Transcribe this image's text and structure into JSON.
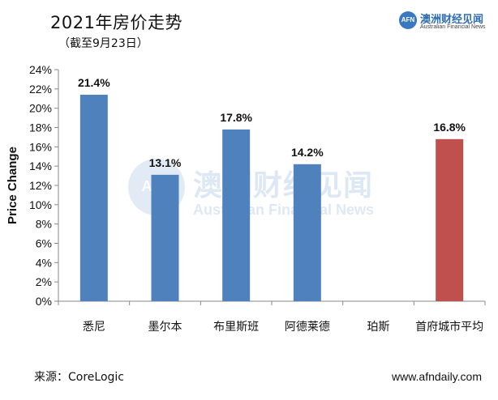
{
  "title": "2021年房价走势",
  "subtitle": "（截至9月23日）",
  "logo": {
    "mark": "AFN",
    "name_cn": "澳洲财经见闻",
    "name_en": "Australian Financial News"
  },
  "watermark": {
    "mark": "AFN",
    "name_cn": "澳洲财经见闻",
    "name_en": "Australian Financial News"
  },
  "source": "来源：CoreLogic",
  "website": "www.afndaily.com",
  "chart_data": {
    "type": "bar",
    "ylabel": "Price Change",
    "ylim": [
      0,
      24
    ],
    "yticks": [
      "0%",
      "2%",
      "4%",
      "6%",
      "8%",
      "10%",
      "12%",
      "14%",
      "16%",
      "18%",
      "20%",
      "22%",
      "24%"
    ],
    "categories": [
      "悉尼",
      "墨尔本",
      "布里斯班",
      "阿德莱德",
      "珀斯",
      "首府城市平均"
    ],
    "values": [
      21.4,
      13.1,
      17.8,
      14.2,
      null,
      16.8
    ],
    "value_labels": [
      "21.4%",
      "13.1%",
      "17.8%",
      "14.2%",
      "",
      "16.8%"
    ],
    "colors": [
      "#4f81bd",
      "#4f81bd",
      "#4f81bd",
      "#4f81bd",
      "#4f81bd",
      "#c0504d"
    ],
    "grid": false,
    "legend": "none"
  }
}
